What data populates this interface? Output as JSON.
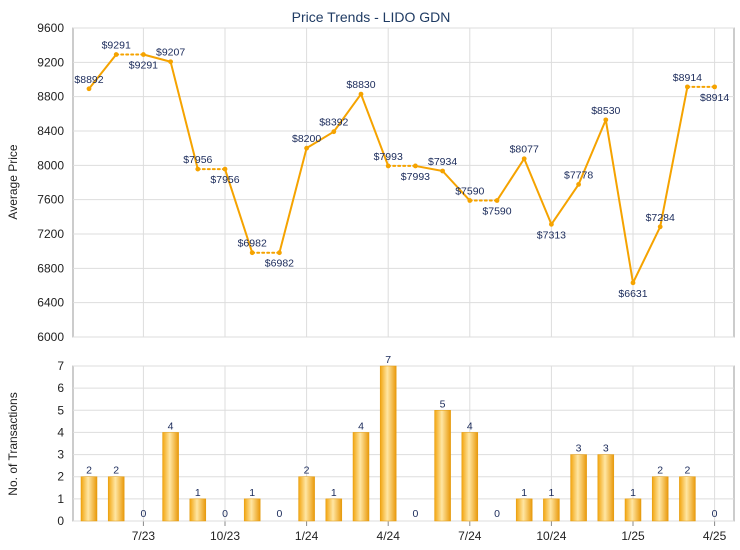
{
  "chart_data": [
    {
      "type": "line",
      "title": "Price Trends - LIDO GDN",
      "ylabel": "Average Price",
      "ylim": [
        6000,
        9600
      ],
      "yticks": [
        6000,
        6400,
        6800,
        7200,
        7600,
        8000,
        8400,
        8800,
        9200,
        9600
      ],
      "grid": true,
      "color": "#F5A300",
      "values": [
        8892,
        9291,
        9291,
        9207,
        7956,
        7956,
        6982,
        6982,
        8200,
        8392,
        8830,
        7993,
        7993,
        7934,
        7590,
        7590,
        8077,
        7313,
        7778,
        8530,
        6631,
        7284,
        8914,
        8914
      ],
      "labels": [
        "$8892",
        "$9291",
        "$9291",
        "$9207",
        "$7956",
        "$7956",
        "$6982",
        "$6982",
        "$8200",
        "$8392",
        "$8830",
        "$7993",
        "$7993",
        "$7934",
        "$7590",
        "$7590",
        "$8077",
        "$7313",
        "$7778",
        "$8530",
        "$6631",
        "$7284",
        "$8914",
        "$8914"
      ]
    },
    {
      "type": "bar",
      "ylabel": "No. of Transactions",
      "ylim": [
        0,
        7
      ],
      "yticks": [
        0,
        1,
        2,
        3,
        4,
        5,
        6,
        7
      ],
      "grid": true,
      "color": "#F5B21F",
      "values": [
        2,
        2,
        0,
        4,
        1,
        0,
        1,
        0,
        2,
        1,
        4,
        7,
        0,
        5,
        4,
        0,
        1,
        1,
        3,
        3,
        1,
        2,
        2,
        0
      ],
      "xticks": [
        {
          "index": 2,
          "label": "7/23"
        },
        {
          "index": 5,
          "label": "10/23"
        },
        {
          "index": 8,
          "label": "1/24"
        },
        {
          "index": 11,
          "label": "4/24"
        },
        {
          "index": 14,
          "label": "7/24"
        },
        {
          "index": 17,
          "label": "10/24"
        },
        {
          "index": 20,
          "label": "1/25"
        },
        {
          "index": 23,
          "label": "4/25"
        }
      ]
    }
  ]
}
